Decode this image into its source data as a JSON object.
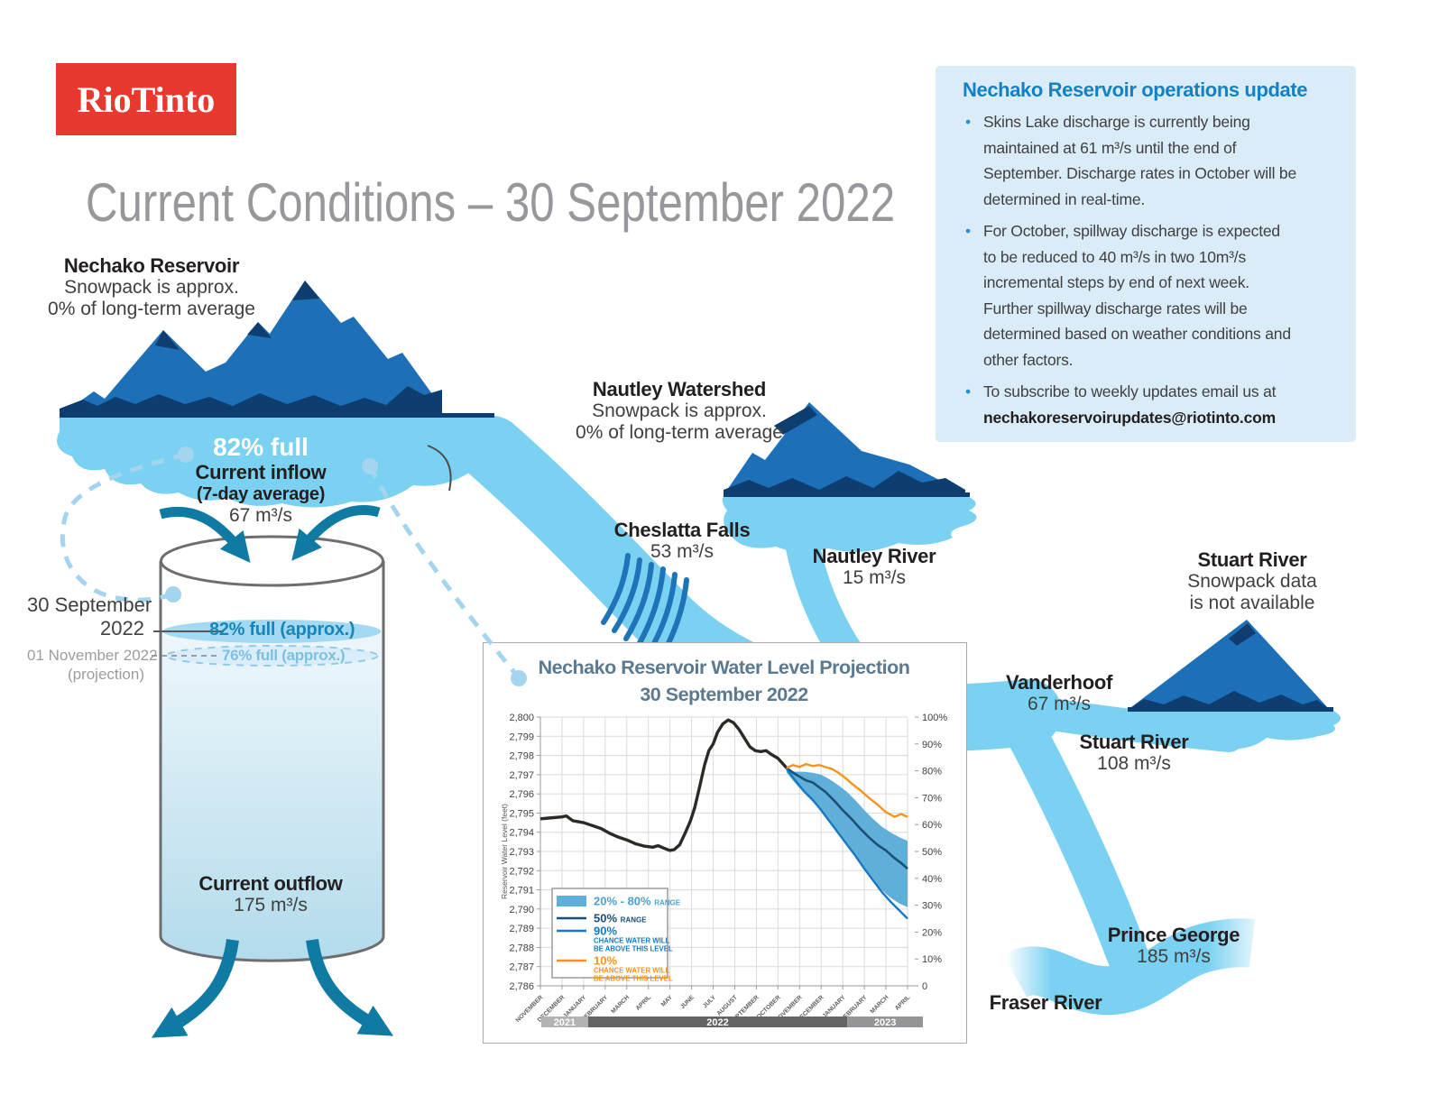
{
  "logo": {
    "text": "RioTinto"
  },
  "title": "Current Conditions – 30 September 2022",
  "reservoir": {
    "name": "Nechako Reservoir",
    "sub1": "Snowpack is approx.",
    "sub2": "0% of long-term average",
    "fullness": "82% full",
    "inflow_label": "Current inflow",
    "inflow_sub": "(7-day average)",
    "inflow_value": "67 m³/s"
  },
  "tank": {
    "date_current_l1": "30 September",
    "date_current_l2": "2022",
    "level_current": "82% full (approx.)",
    "date_proj_l1": "01 November 2022",
    "date_proj_l2": "(projection)",
    "level_proj": "76% full (approx.)",
    "outflow_label": "Current outflow",
    "outflow_value": "175 m³/s"
  },
  "labels": {
    "cheslatta": {
      "name": "Cheslatta Falls",
      "value": "53 m³/s"
    },
    "nautley_watershed": {
      "name": "Nautley Watershed",
      "sub1": "Snowpack is approx.",
      "sub2": "0% of long-term average"
    },
    "nautley_river": {
      "name": "Nautley River",
      "value": "15 m³/s"
    },
    "stuart_watershed": {
      "name": "Stuart River",
      "sub1": "Snowpack data",
      "sub2": "is not available"
    },
    "vanderhoof": {
      "name": "Vanderhoof",
      "value": "67 m³/s"
    },
    "stuart_river": {
      "name": "Stuart River",
      "value": "108 m³/s"
    },
    "prince_george": {
      "name": "Prince George",
      "value": "185 m³/s"
    },
    "fraser_river": {
      "name": "Fraser River"
    }
  },
  "panel": {
    "title": "Nechako Reservoir operations update",
    "bullets": [
      {
        "lines": [
          "Skins Lake discharge is currently being",
          "maintained at 61 m³/s until the end of",
          "September. Discharge rates in October will be",
          "determined in real-time."
        ]
      },
      {
        "lines": [
          "For October, spillway discharge is expected",
          "to be reduced to 40 m³/s in two 10m³/s",
          "incremental steps by end of next week.",
          "Further spillway discharge rates will be",
          "determined based on weather conditions and",
          "other factors."
        ]
      },
      {
        "lines": [
          "To subscribe to weekly updates email us at"
        ],
        "email": "nechakoreservoirupdates@riotinto.com"
      }
    ]
  },
  "chart_data": {
    "type": "line",
    "title": "Nechako Reservoir Water Level Projection",
    "subtitle": "30 September 2022",
    "ylabel": "Reservoir Water Level (feet)",
    "ylim": [
      2786,
      2800
    ],
    "y2lim": [
      0,
      100
    ],
    "x_ticks": [
      "NOVEMBER",
      "DECEMBER",
      "JANUARY",
      "FEBRUARY",
      "MARCH",
      "APRIL",
      "MAY",
      "JUNE",
      "JULY",
      "AUGUST",
      "SEPTEMBER",
      "OCTOBER",
      "NOVEMBER",
      "DECEMBER",
      "JANUARY",
      "FEBRUARY",
      "MARCH",
      "APRIL"
    ],
    "year_bands": [
      {
        "label": "2021",
        "from": 0,
        "to": 2,
        "color": "#b1b3b5"
      },
      {
        "label": "2022",
        "from": 2,
        "to": 14,
        "color": "#636466"
      },
      {
        "label": "2023",
        "from": 14,
        "to": 18,
        "color": "#939598"
      }
    ],
    "series": [
      {
        "name": "historical",
        "color": "#2d2a26",
        "width": 3.4,
        "points": [
          [
            0,
            2794.7
          ],
          [
            0.5,
            2794.75
          ],
          [
            1,
            2794.8
          ],
          [
            1.2,
            2794.85
          ],
          [
            1.5,
            2794.6
          ],
          [
            2,
            2794.5
          ],
          [
            2.4,
            2794.35
          ],
          [
            2.8,
            2794.2
          ],
          [
            3.2,
            2793.95
          ],
          [
            3.6,
            2793.75
          ],
          [
            4,
            2793.6
          ],
          [
            4.4,
            2793.4
          ],
          [
            4.8,
            2793.28
          ],
          [
            5.2,
            2793.22
          ],
          [
            5.45,
            2793.3
          ],
          [
            5.7,
            2793.18
          ],
          [
            6,
            2793.05
          ],
          [
            6.2,
            2793.1
          ],
          [
            6.45,
            2793.35
          ],
          [
            6.7,
            2793.95
          ],
          [
            6.95,
            2794.6
          ],
          [
            7.15,
            2795.3
          ],
          [
            7.4,
            2796.5
          ],
          [
            7.6,
            2797.5
          ],
          [
            7.8,
            2798.25
          ],
          [
            8,
            2798.6
          ],
          [
            8.2,
            2799.2
          ],
          [
            8.45,
            2799.65
          ],
          [
            8.7,
            2799.85
          ],
          [
            8.95,
            2799.7
          ],
          [
            9.2,
            2799.35
          ],
          [
            9.45,
            2798.9
          ],
          [
            9.7,
            2798.45
          ],
          [
            9.95,
            2798.25
          ],
          [
            10.2,
            2798.2
          ],
          [
            10.45,
            2798.25
          ],
          [
            10.7,
            2798.05
          ],
          [
            11,
            2797.85
          ],
          [
            11.4,
            2797.35
          ]
        ]
      },
      {
        "name": "50% RANGE",
        "color": "#1c4f76",
        "width": 2.6,
        "points": [
          [
            11.4,
            2797.35
          ],
          [
            11.7,
            2797.1
          ],
          [
            12,
            2796.9
          ],
          [
            12.3,
            2796.7
          ],
          [
            12.6,
            2796.6
          ],
          [
            12.9,
            2796.35
          ],
          [
            13.2,
            2796.1
          ],
          [
            13.6,
            2795.65
          ],
          [
            14,
            2795.15
          ],
          [
            14.4,
            2794.7
          ],
          [
            14.8,
            2794.2
          ],
          [
            15.2,
            2793.75
          ],
          [
            15.6,
            2793.35
          ],
          [
            16,
            2793.05
          ],
          [
            16.4,
            2792.65
          ],
          [
            16.7,
            2792.4
          ],
          [
            17,
            2792.1
          ]
        ]
      },
      {
        "name": "90% CHANCE WATER WILL BE ABOVE THIS LEVEL",
        "color": "#1879c2",
        "width": 2.4,
        "points": [
          [
            11.4,
            2797.3
          ],
          [
            11.8,
            2796.7
          ],
          [
            12.2,
            2796.15
          ],
          [
            12.6,
            2795.7
          ],
          [
            13,
            2795.15
          ],
          [
            13.4,
            2794.55
          ],
          [
            13.8,
            2793.95
          ],
          [
            14.2,
            2793.35
          ],
          [
            14.6,
            2792.75
          ],
          [
            15,
            2792.1
          ],
          [
            15.4,
            2791.5
          ],
          [
            15.8,
            2790.9
          ],
          [
            16.2,
            2790.4
          ],
          [
            16.6,
            2789.95
          ],
          [
            17,
            2789.5
          ]
        ]
      },
      {
        "name": "10% CHANCE WATER WILL BE ABOVE THIS LEVEL",
        "color": "#f6921e",
        "width": 2.4,
        "points": [
          [
            11.4,
            2797.35
          ],
          [
            11.7,
            2797.5
          ],
          [
            12,
            2797.4
          ],
          [
            12.3,
            2797.55
          ],
          [
            12.6,
            2797.45
          ],
          [
            12.9,
            2797.5
          ],
          [
            13.2,
            2797.4
          ],
          [
            13.5,
            2797.3
          ],
          [
            13.8,
            2797.1
          ],
          [
            14.1,
            2796.85
          ],
          [
            14.4,
            2796.55
          ],
          [
            14.8,
            2796.2
          ],
          [
            15.2,
            2795.8
          ],
          [
            15.6,
            2795.45
          ],
          [
            16,
            2795.05
          ],
          [
            16.4,
            2794.8
          ],
          [
            16.7,
            2794.95
          ],
          [
            17,
            2794.8
          ]
        ]
      }
    ],
    "band": {
      "name": "20% - 80% RANGE",
      "color": "#5fafd9",
      "upper": [
        [
          11.4,
          2797.25
        ],
        [
          11.8,
          2797.15
        ],
        [
          12.2,
          2797.15
        ],
        [
          12.6,
          2797.1
        ],
        [
          13,
          2797.0
        ],
        [
          13.4,
          2796.75
        ],
        [
          13.8,
          2796.45
        ],
        [
          14.2,
          2796.1
        ],
        [
          14.6,
          2795.65
        ],
        [
          15,
          2795.15
        ],
        [
          15.4,
          2794.7
        ],
        [
          15.8,
          2794.3
        ],
        [
          16.2,
          2794.0
        ],
        [
          16.6,
          2793.75
        ],
        [
          17,
          2793.55
        ]
      ],
      "lower": [
        [
          11.4,
          2797.1
        ],
        [
          11.8,
          2796.55
        ],
        [
          12.2,
          2796.05
        ],
        [
          12.6,
          2795.6
        ],
        [
          13,
          2795.1
        ],
        [
          13.4,
          2794.5
        ],
        [
          13.8,
          2793.9
        ],
        [
          14.2,
          2793.3
        ],
        [
          14.6,
          2792.7
        ],
        [
          15,
          2792.15
        ],
        [
          15.4,
          2791.55
        ],
        [
          15.8,
          2791.0
        ],
        [
          16.2,
          2790.6
        ],
        [
          16.6,
          2790.3
        ],
        [
          17,
          2790.1
        ]
      ]
    },
    "legend": [
      {
        "swatch": "patch",
        "color": "#5fafd9",
        "text_color": "#4aa0d2",
        "big": "20% - 80%",
        "small_inline": "RANGE"
      },
      {
        "swatch": "line",
        "color": "#1c4f76",
        "text_color": "#1c4f76",
        "big": "50%",
        "small_inline": "RANGE"
      },
      {
        "swatch": "line",
        "color": "#1879c2",
        "text_color": "#1879c2",
        "big": "90%",
        "small_lines": [
          "CHANCE WATER WILL",
          "BE ABOVE THIS LEVEL"
        ]
      },
      {
        "swatch": "line",
        "color": "#f6921e",
        "text_color": "#f6921e",
        "big": "10%",
        "small_lines": [
          "CHANCE WATER WILL",
          "BE ABOVE THIS LEVEL"
        ]
      }
    ]
  }
}
